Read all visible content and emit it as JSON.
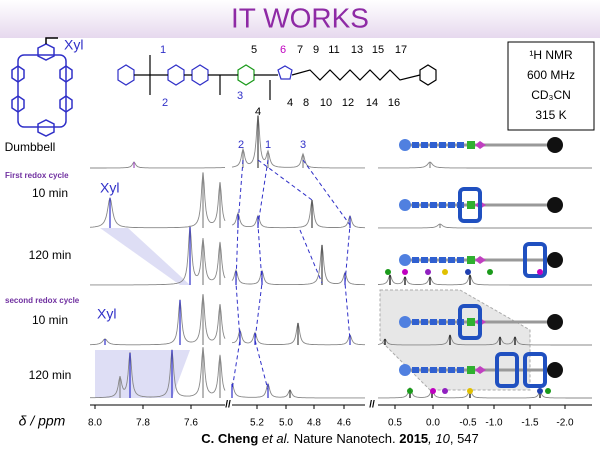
{
  "title": "IT WORKS",
  "macrocycle_label": "Xyl",
  "dumbbell_label": "Dumbbell",
  "structure_numbers": [
    "1",
    "2",
    "3",
    "4",
    "5",
    "6",
    "7",
    "8",
    "9",
    "10",
    "11",
    "12",
    "13",
    "14",
    "15",
    "16",
    "17"
  ],
  "conditions": [
    "¹H NMR",
    "600 MHz",
    "CD₃CN",
    "315 K"
  ],
  "rows": [
    {
      "section": "First redox cycle",
      "label": "10 min",
      "tag": "Xyl"
    },
    {
      "label": "120 min"
    },
    {
      "section": "second redox cycle",
      "label": "10 min",
      "tag": "Xyl"
    },
    {
      "label": "120 min"
    }
  ],
  "peak_labels": [
    "4",
    "2",
    "1",
    "3"
  ],
  "axis": {
    "label": "δ / ppm",
    "ticks": [
      "8.0",
      "7.8",
      "7.6",
      "5.2",
      "5.0",
      "4.8",
      "4.6",
      "0.5",
      "0.0",
      "-0.5",
      "-1.0",
      "-1.5",
      "-2.0"
    ]
  },
  "citation": {
    "authors": "C. Cheng",
    "etal": " et al. ",
    "journal": "Nature Nanotech. ",
    "year": "2015",
    "volume": ", 10",
    "pages": ", 547"
  }
}
